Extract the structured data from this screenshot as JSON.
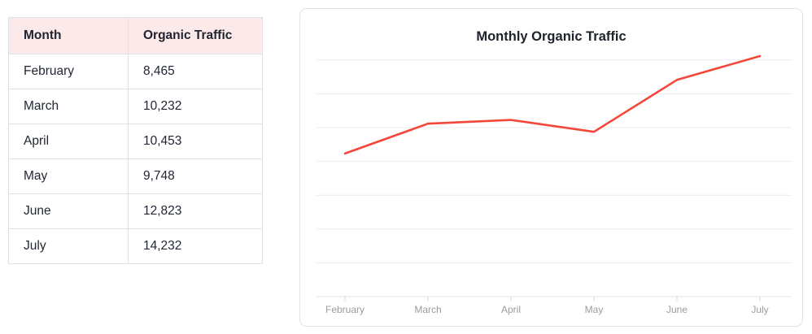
{
  "page": {
    "background": "#ffffff"
  },
  "table": {
    "header_bg": "#fce9e9",
    "header_text_color": "#1f2430",
    "columns": [
      "Month",
      "Organic Traffic"
    ],
    "rows": [
      [
        "February",
        "8,465"
      ],
      [
        "March",
        "10,232"
      ],
      [
        "April",
        "10,453"
      ],
      [
        "May",
        "9,748"
      ],
      [
        "June",
        "12,823"
      ],
      [
        "July",
        "14,232"
      ]
    ]
  },
  "chart_data": {
    "type": "line",
    "title": "Monthly Organic Traffic",
    "categories": [
      "February",
      "March",
      "April",
      "May",
      "June",
      "July"
    ],
    "values": [
      8465,
      10232,
      10453,
      9748,
      12823,
      14232
    ],
    "xlabel": "",
    "ylabel": "",
    "ylim": [
      0,
      14000
    ],
    "grid_step": 2000,
    "grid": "horizontal",
    "y_tick_labels_visible": false,
    "legend_position": "none",
    "line_color": "#f4473a",
    "gridline_color": "#ececec",
    "baseline_color": "#e3e3e3",
    "tick_color": "#d8d8d8",
    "axis_label_color": "#9b9b9b"
  }
}
